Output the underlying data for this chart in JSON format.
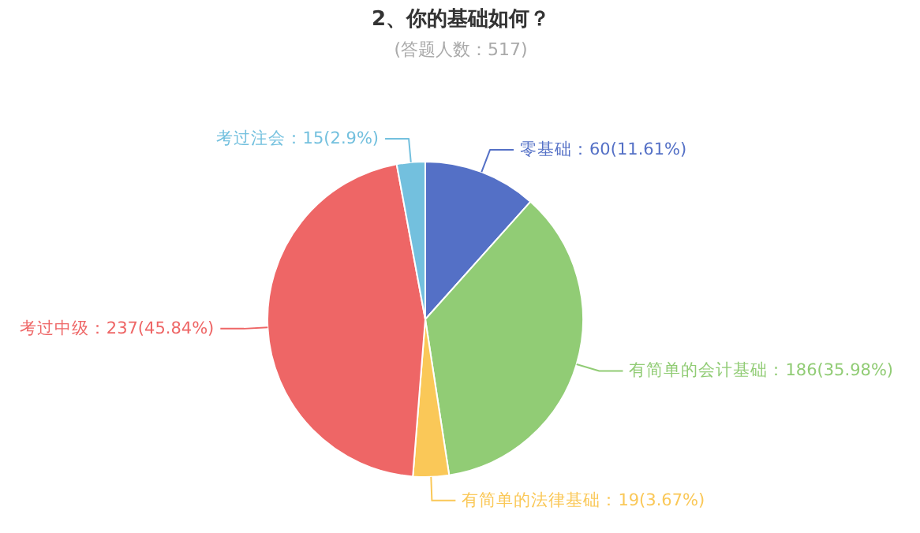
{
  "chart_data": {
    "type": "pie",
    "title": "2、你的基础如何？",
    "subtitle": "(答题人数：517)",
    "categories": [
      "零基础",
      "有简单的会计基础",
      "有简单的法律基础",
      "考过中级",
      "考过注会"
    ],
    "values": [
      60,
      186,
      19,
      237,
      15
    ],
    "colors": [
      "#5470c6",
      "#91cc75",
      "#fac858",
      "#ee6666",
      "#73c0de"
    ],
    "value_labels": [
      "：60(11.61%)",
      "：186(35.98%)",
      "：19(3.67%)",
      "：237(45.84%)",
      "：15(2.9%)"
    ]
  }
}
